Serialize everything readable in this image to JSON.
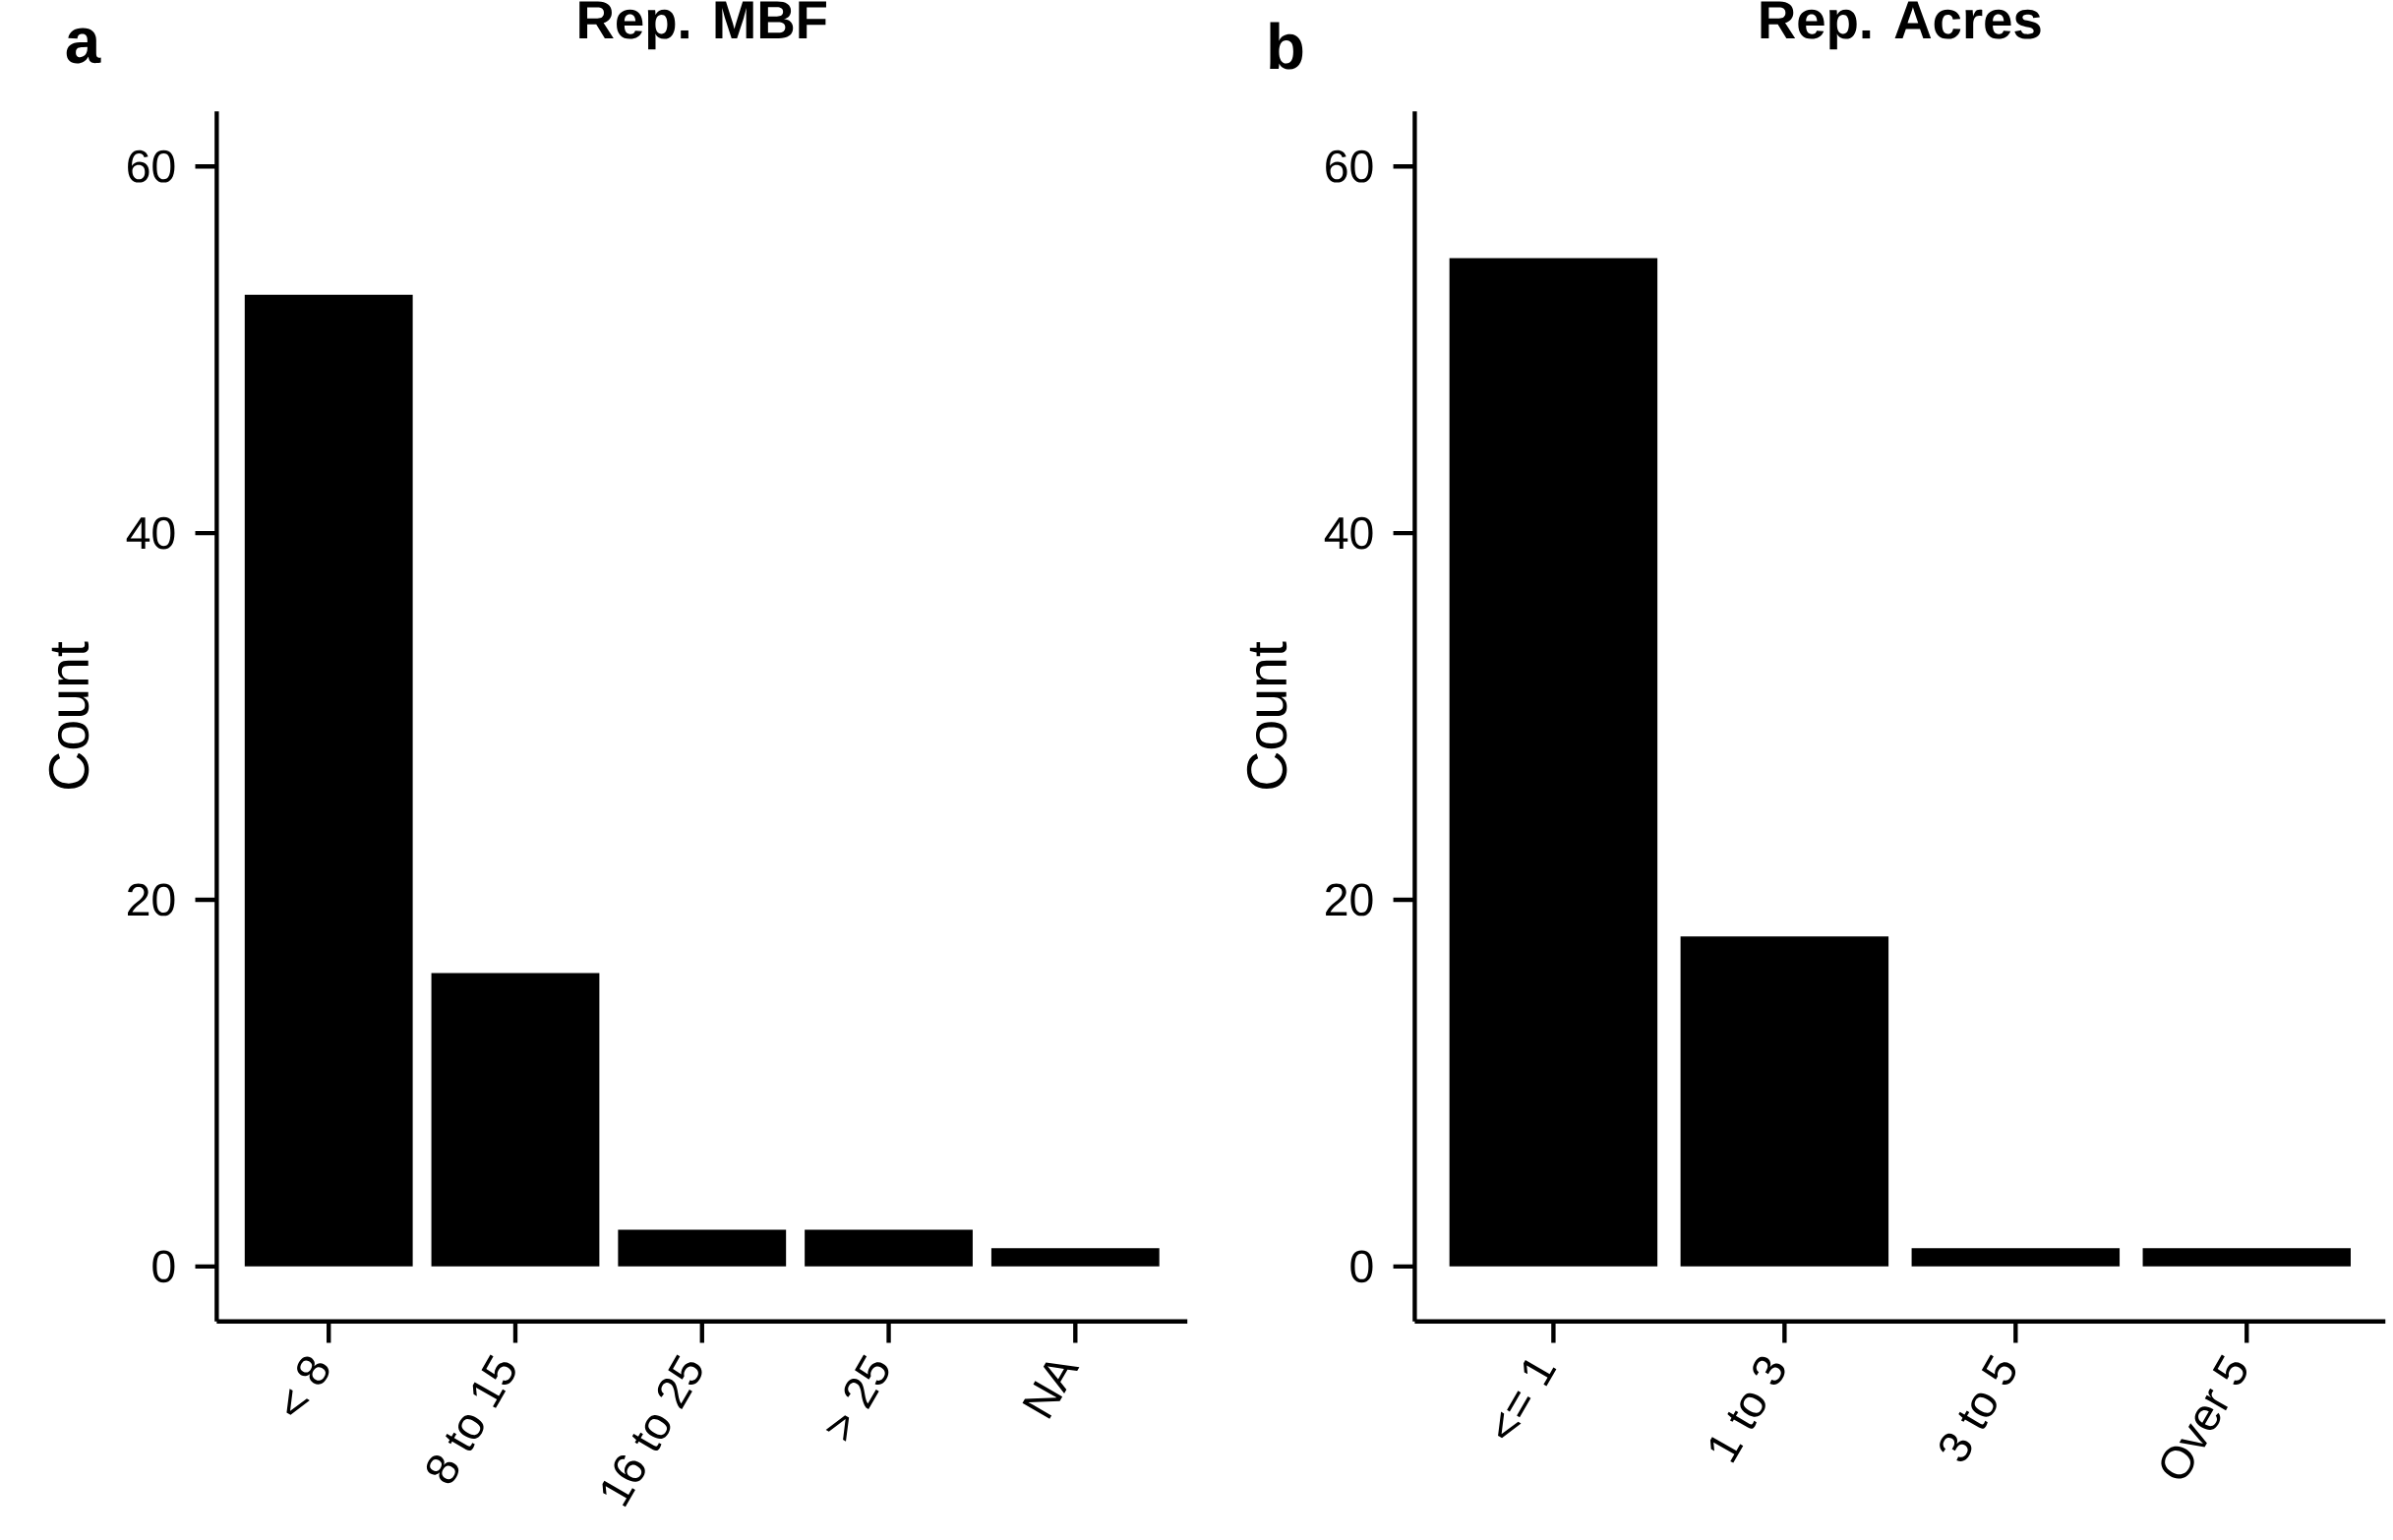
{
  "chart_data": [
    {
      "type": "bar",
      "title": "Rep. MBF",
      "ylabel": "Count",
      "annotations": [
        "a"
      ],
      "categories": [
        "< 8",
        "8 to 15",
        "16 to 25",
        "> 25",
        "NA"
      ],
      "values": [
        53,
        16,
        2,
        2,
        1
      ],
      "color": "#000000",
      "ylim": [
        -3,
        63
      ],
      "yticks": [
        0,
        20,
        40,
        60
      ]
    },
    {
      "type": "bar",
      "title": "Rep. Acres",
      "ylabel": "Count",
      "annotations": [
        "b"
      ],
      "categories": [
        "<= 1",
        "1 to 3",
        "3 to 5",
        "Over 5"
      ],
      "values": [
        55,
        18,
        1,
        1
      ],
      "color": "#000000",
      "ylim": [
        -3,
        63
      ],
      "yticks": [
        0,
        20,
        40,
        60
      ]
    }
  ]
}
